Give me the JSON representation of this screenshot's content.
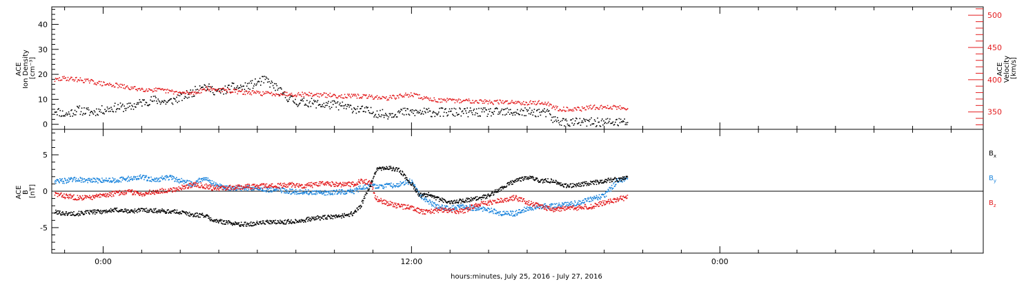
{
  "chart_data": [
    {
      "type": "scatter",
      "panel": "top",
      "ylabel_left": [
        "ACE",
        "Ion Density",
        "[cm⁻³]"
      ],
      "ylabel_right": [
        "ACE",
        "Velocity",
        "[km/s]"
      ],
      "ylim_left": [
        -2,
        47
      ],
      "ylim_right": [
        323,
        513
      ],
      "yticks_left": [
        "0",
        "10",
        "20",
        "30",
        "40"
      ],
      "yticks_right": [
        "350",
        "400",
        "450",
        "500"
      ],
      "grid": false,
      "series": [
        {
          "axis": "left",
          "color": "#000000",
          "x_hours": [
            -1.9,
            -1.5,
            -1,
            -0.5,
            0,
            0.5,
            1,
            1.5,
            2,
            2.5,
            3,
            3.5,
            3.8,
            4,
            4.5,
            5,
            5.5,
            6,
            6.3,
            6.7,
            7,
            7.5,
            8,
            8.5,
            9,
            9.5,
            10,
            10.5,
            11,
            11.5,
            12,
            12.5,
            13,
            13.5,
            14,
            14.5,
            15,
            15.5,
            16,
            16.5,
            17,
            17.3,
            17.5,
            18,
            18.5,
            19,
            19.5,
            20,
            20.4
          ],
          "values": [
            6,
            4,
            6,
            5,
            6,
            7,
            7,
            9,
            10,
            9,
            11,
            13,
            16,
            15,
            13,
            15,
            15,
            17,
            18,
            15,
            12,
            9,
            9,
            8,
            8,
            7,
            6,
            5,
            4,
            5,
            5,
            5,
            5,
            5,
            5,
            5,
            5,
            5,
            5,
            5,
            5,
            4.5,
            2,
            1,
            1,
            1,
            1,
            1,
            1
          ]
        },
        {
          "axis": "right",
          "color": "#e31a1c",
          "x_hours": [
            -1.9,
            -1.5,
            -1,
            -0.5,
            0,
            0.5,
            1,
            1.5,
            2,
            2.5,
            3,
            3.5,
            4,
            4.5,
            5,
            5.5,
            6,
            6.5,
            7,
            7.5,
            8,
            8.5,
            9,
            9.5,
            10,
            10.5,
            11,
            11.5,
            12,
            12.5,
            13,
            13.5,
            14,
            14.5,
            15,
            15.5,
            16,
            16.5,
            17,
            17.3,
            17.5,
            18,
            18.5,
            19,
            19.5,
            20,
            20.4
          ],
          "values": [
            400,
            403,
            401,
            398,
            394,
            392,
            388,
            386,
            385,
            383,
            380,
            380,
            387,
            385,
            383,
            381,
            380,
            379,
            379,
            378,
            378,
            377,
            376,
            375,
            375,
            374,
            372,
            375,
            378,
            372,
            369,
            368,
            368,
            368,
            366,
            366,
            366,
            365,
            365,
            364,
            357,
            355,
            355,
            358,
            358,
            358,
            357
          ]
        }
      ]
    },
    {
      "type": "scatter",
      "panel": "bottom",
      "ylabel": [
        "ACE",
        "B",
        "[nT]"
      ],
      "ylim": [
        -8.5,
        8.5
      ],
      "yticks": [
        "-5",
        "0",
        "5"
      ],
      "zero_line": true,
      "grid": false,
      "xlabel": "hours:minutes, July 25, 2016 - July 27, 2016",
      "x_range_hours": [
        -2,
        34.25
      ],
      "xticks": [
        {
          "hour": 0,
          "label": "0:00"
        },
        {
          "hour": 12,
          "label": "12:00"
        },
        {
          "hour": 24,
          "label": "0:00"
        }
      ],
      "series": [
        {
          "name": "B_x",
          "legend_main": "B",
          "legend_sub": "x",
          "color": "#000000",
          "x_hours": [
            -1.9,
            -1.5,
            -1,
            -0.5,
            0,
            0.5,
            1,
            1.5,
            2,
            2.5,
            3,
            3.5,
            3.9,
            4.3,
            4.8,
            5.3,
            5.8,
            6.3,
            6.8,
            7.3,
            7.8,
            8.3,
            8.8,
            9.3,
            9.7,
            10,
            10.4,
            10.6,
            11,
            11.5,
            12,
            12.3,
            12.7,
            13,
            13.5,
            14,
            14.5,
            15,
            15.5,
            16,
            16.5,
            17,
            17.5,
            18,
            18.5,
            19,
            19.5,
            20,
            20.4
          ],
          "values": [
            -2.8,
            -3,
            -3,
            -2.8,
            -2.7,
            -2.5,
            -2.7,
            -2.5,
            -2.6,
            -2.7,
            -2.8,
            -3.2,
            -3.2,
            -4,
            -4.2,
            -4.5,
            -4.4,
            -4.2,
            -4.2,
            -4.1,
            -3.9,
            -3.6,
            -3.5,
            -3.3,
            -3.0,
            -2.0,
            1.0,
            3.0,
            3.3,
            3.0,
            1.0,
            -0.5,
            -0.3,
            -1.0,
            -1.5,
            -1.2,
            -1.0,
            -0.5,
            0.5,
            1.5,
            2.0,
            1.5,
            1.5,
            0.8,
            1.0,
            1.2,
            1.5,
            1.7,
            1.9
          ]
        },
        {
          "name": "B_y",
          "legend_main": "B",
          "legend_sub": "y",
          "color": "#1a84dc",
          "x_hours": [
            -1.9,
            -1.5,
            -1,
            -0.5,
            0,
            0.5,
            1,
            1.5,
            2,
            2.5,
            3,
            3.5,
            3.9,
            4.3,
            4.8,
            5.3,
            5.8,
            6.3,
            6.8,
            7.3,
            7.8,
            8.3,
            8.8,
            9.3,
            9.7,
            10,
            10.4,
            10.6,
            11,
            11.5,
            12,
            12.3,
            12.7,
            13,
            13.5,
            14,
            14.5,
            15,
            15.5,
            16,
            16.5,
            17,
            17.5,
            18,
            18.5,
            19,
            19.5,
            20,
            20.4
          ],
          "values": [
            1.5,
            1.5,
            1.7,
            1.5,
            1.6,
            1.6,
            1.8,
            2.0,
            1.6,
            2.0,
            1.5,
            1.0,
            2.0,
            1.0,
            0.5,
            0.5,
            0.5,
            0.3,
            0.3,
            0.0,
            0.0,
            -0.2,
            -0.1,
            0.0,
            0.0,
            0.5,
            1.0,
            0.7,
            0.8,
            1.0,
            1.5,
            -0.5,
            -1.5,
            -2.0,
            -2.3,
            -2.0,
            -2.3,
            -2.5,
            -3.0,
            -3.0,
            -2.3,
            -2.0,
            -2.0,
            -1.8,
            -1.5,
            -1.0,
            -0.5,
            1.5,
            1.8
          ]
        },
        {
          "name": "B_z",
          "legend_main": "B",
          "legend_sub": "z",
          "color": "#e31a1c",
          "x_hours": [
            -1.9,
            -1.5,
            -1,
            -0.5,
            0,
            0.5,
            1,
            1.5,
            2,
            2.5,
            3,
            3.5,
            3.9,
            4.3,
            4.8,
            5.3,
            5.8,
            6.3,
            6.8,
            7.3,
            7.8,
            8.3,
            8.8,
            9.3,
            9.7,
            10,
            10.4,
            10.6,
            11,
            11.5,
            12,
            12.3,
            12.7,
            13,
            13.5,
            14,
            14.5,
            15,
            15.5,
            16,
            16.5,
            17,
            17.5,
            18,
            18.5,
            19,
            19.5,
            20,
            20.4
          ],
          "values": [
            -0.3,
            -0.6,
            -0.8,
            -0.8,
            -0.5,
            -0.2,
            0.0,
            -0.3,
            0.0,
            0.2,
            0.5,
            1.0,
            0.8,
            0.5,
            0.5,
            0.7,
            0.7,
            0.8,
            0.8,
            1.0,
            0.8,
            1.0,
            1.1,
            1.0,
            1.0,
            1.5,
            1.2,
            -1.0,
            -1.5,
            -2.0,
            -2.2,
            -2.7,
            -2.8,
            -2.5,
            -2.6,
            -2.7,
            -1.8,
            -1.5,
            -1.2,
            -0.8,
            -1.5,
            -2.0,
            -2.5,
            -2.3,
            -2.2,
            -2.0,
            -1.5,
            -1.0,
            -0.8
          ]
        }
      ]
    }
  ]
}
